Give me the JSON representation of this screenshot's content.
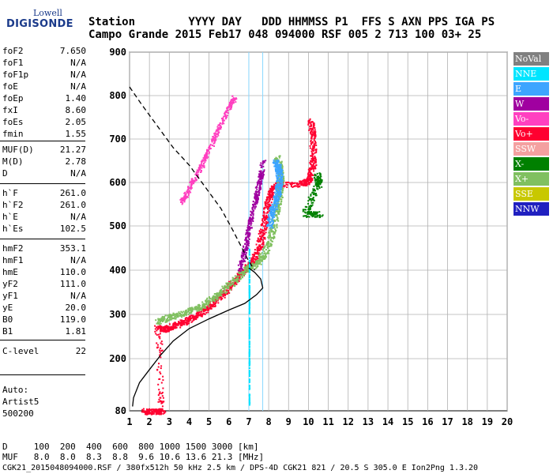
{
  "logo": {
    "line1": "Lowell",
    "line2": "DIGISONDE"
  },
  "header": {
    "labels": "Station        YYYY DAY   DDD HHMMSS P1  FFS S AXN PPS IGA PS",
    "values": "Campo Grande 2015 Feb17 048 094000 RSF 005 2 713 100 03+ 25"
  },
  "params": [
    {
      "k": "foF2",
      "v": "7.650"
    },
    {
      "k": "foF1",
      "v": "N/A"
    },
    {
      "k": "foF1p",
      "v": "N/A"
    },
    {
      "k": "foE",
      "v": "N/A"
    },
    {
      "k": "foEp",
      "v": "1.40"
    },
    {
      "k": "fxI",
      "v": "8.60"
    },
    {
      "k": "foEs",
      "v": "2.05"
    },
    {
      "k": "fmin",
      "v": "1.55"
    },
    {
      "k": "MUF(D)",
      "v": "21.27"
    },
    {
      "k": "M(D)",
      "v": "2.78"
    },
    {
      "k": "D",
      "v": "N/A"
    },
    {
      "k": "h`F",
      "v": "261.0"
    },
    {
      "k": "h`F2",
      "v": "261.0"
    },
    {
      "k": "h`E",
      "v": "N/A"
    },
    {
      "k": "h`Es",
      "v": "102.5"
    },
    {
      "k": "hmF2",
      "v": "353.1"
    },
    {
      "k": "hmF1",
      "v": "N/A"
    },
    {
      "k": "hmE",
      "v": "110.0"
    },
    {
      "k": "yF2",
      "v": "111.0"
    },
    {
      "k": "yF1",
      "v": "N/A"
    },
    {
      "k": "yE",
      "v": "20.0"
    },
    {
      "k": "B0",
      "v": "119.0"
    },
    {
      "k": "B1",
      "v": "1.81"
    },
    {
      "k": "C-level",
      "v": "22"
    }
  ],
  "auto": {
    "l1": "Auto:",
    "l2": "Artist5",
    "l3": "500200"
  },
  "legend": [
    {
      "label": "NoVal",
      "color": "#808080"
    },
    {
      "label": "NNE",
      "color": "#00e5ff"
    },
    {
      "label": "E",
      "color": "#3da5ff"
    },
    {
      "label": "W",
      "color": "#a000a0"
    },
    {
      "label": "Vo-",
      "color": "#ff40c0"
    },
    {
      "label": "Vo+",
      "color": "#ff0030"
    },
    {
      "label": "SSW",
      "color": "#f4a0a0"
    },
    {
      "label": "X-",
      "color": "#008000"
    },
    {
      "label": "X+",
      "color": "#80c060"
    },
    {
      "label": "SSE",
      "color": "#c8c800"
    },
    {
      "label": "NNW",
      "color": "#2020c0"
    }
  ],
  "footer": {
    "d_row": "D     100  200  400  600  800 1000 1500 3000 [km]",
    "muf_row": "MUF   8.0  8.0  8.3  8.8  9.6 10.6 13.6 21.3 [MHz]",
    "file_line": "CGK21_2015048094000.RSF / 380fx512h 50 kHz 2.5 km / DPS-4D CGK21 821 / 20.5 S 305.0 E Ion2Png 1.3.20"
  },
  "chart_data": {
    "type": "scatter",
    "x_ticks": [
      1,
      2,
      3,
      4,
      5,
      6,
      7,
      8,
      9,
      10,
      11,
      12,
      13,
      14,
      15,
      16,
      17,
      18,
      19,
      20
    ],
    "y_ticks": [
      80,
      200,
      300,
      400,
      500,
      600,
      700,
      800,
      900
    ],
    "xlim": [
      1,
      20
    ],
    "ylim": [
      80,
      900
    ],
    "grid": true,
    "legend_position": "right",
    "marker_lines": [
      7.0,
      7.7
    ],
    "traces": [
      {
        "name": "Vo+",
        "color": "#ff0030",
        "points": [
          [
            1.7,
            80
          ],
          [
            2.3,
            79
          ],
          [
            2.6,
            80
          ],
          [
            2.4,
            270
          ],
          [
            2.8,
            268
          ],
          [
            3.2,
            275
          ],
          [
            3.8,
            285
          ],
          [
            4.4,
            300
          ],
          [
            5.0,
            320
          ],
          [
            5.6,
            345
          ],
          [
            6.1,
            370
          ],
          [
            6.6,
            395
          ],
          [
            7.0,
            410
          ],
          [
            7.3,
            430
          ],
          [
            7.6,
            470
          ],
          [
            7.8,
            520
          ],
          [
            8.0,
            570
          ],
          [
            8.3,
            595
          ],
          [
            9.6,
            598
          ],
          [
            10.0,
            605
          ],
          [
            10.2,
            640
          ],
          [
            10.2,
            700
          ],
          [
            10.1,
            745
          ]
        ]
      },
      {
        "name": "X+",
        "color": "#80c060",
        "points": [
          [
            2.4,
            285
          ],
          [
            3.0,
            295
          ],
          [
            3.8,
            305
          ],
          [
            4.6,
            320
          ],
          [
            5.4,
            345
          ],
          [
            6.2,
            375
          ],
          [
            6.9,
            405
          ],
          [
            7.5,
            420
          ],
          [
            8.0,
            460
          ],
          [
            8.3,
            520
          ],
          [
            8.5,
            570
          ],
          [
            8.6,
            620
          ],
          [
            8.4,
            660
          ]
        ]
      },
      {
        "name": "E",
        "color": "#3da5ff",
        "points": [
          [
            8.0,
            500
          ],
          [
            8.2,
            540
          ],
          [
            8.4,
            570
          ],
          [
            8.5,
            600
          ],
          [
            8.5,
            630
          ],
          [
            8.3,
            650
          ]
        ]
      },
      {
        "name": "Vo-",
        "color": "#ff40c0",
        "points": [
          [
            3.6,
            555
          ],
          [
            4.0,
            590
          ],
          [
            4.6,
            640
          ],
          [
            5.2,
            700
          ],
          [
            5.8,
            760
          ],
          [
            6.3,
            800
          ]
        ]
      },
      {
        "name": "W",
        "color": "#a000a0",
        "points": [
          [
            6.5,
            400
          ],
          [
            6.8,
            450
          ],
          [
            7.0,
            500
          ],
          [
            7.3,
            560
          ],
          [
            7.5,
            600
          ],
          [
            7.7,
            650
          ]
        ]
      },
      {
        "name": "X-",
        "color": "#008000",
        "points": [
          [
            10.4,
            620
          ],
          [
            10.5,
            600
          ],
          [
            9.8,
            528
          ],
          [
            10.6,
            528
          ]
        ]
      },
      {
        "name": "NNE",
        "color": "#00e5ff",
        "points": [
          [
            7.0,
            95
          ],
          [
            7.0,
            150
          ],
          [
            7.0,
            200
          ],
          [
            7.0,
            250
          ],
          [
            7.0,
            300
          ],
          [
            7.0,
            350
          ],
          [
            7.0,
            380
          ],
          [
            7.0,
            450
          ]
        ]
      }
    ],
    "profile_solid": [
      [
        1.15,
        90
      ],
      [
        1.2,
        110
      ],
      [
        1.5,
        145
      ],
      [
        2.0,
        175
      ],
      [
        2.6,
        210
      ],
      [
        3.2,
        240
      ],
      [
        4.0,
        268
      ],
      [
        5.0,
        290
      ],
      [
        6.0,
        310
      ],
      [
        6.8,
        325
      ],
      [
        7.4,
        345
      ],
      [
        7.7,
        360
      ],
      [
        7.6,
        380
      ],
      [
        7.3,
        395
      ],
      [
        7.0,
        405
      ]
    ],
    "profile_dashed": [
      [
        1.0,
        820
      ],
      [
        1.6,
        780
      ],
      [
        2.4,
        730
      ],
      [
        3.2,
        680
      ],
      [
        4.0,
        640
      ],
      [
        4.8,
        590
      ],
      [
        5.6,
        540
      ],
      [
        6.2,
        490
      ],
      [
        6.6,
        455
      ],
      [
        7.0,
        420
      ],
      [
        7.3,
        400
      ]
    ]
  }
}
